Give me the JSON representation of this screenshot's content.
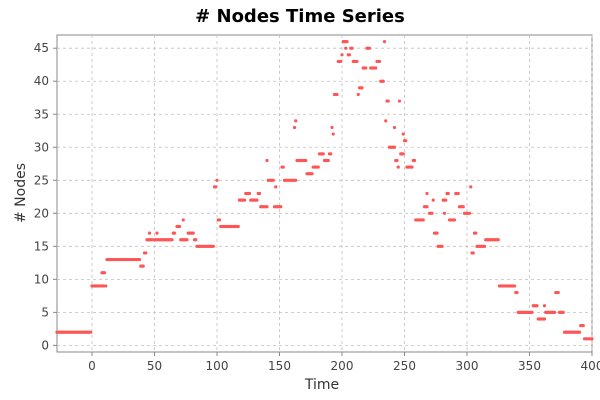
{
  "chart_data": {
    "type": "scatter",
    "title": "# Nodes Time Series",
    "xlabel": "Time",
    "ylabel": "# Nodes",
    "xlim": [
      -28,
      400
    ],
    "ylim": [
      -1,
      47
    ],
    "xticks": [
      0,
      50,
      100,
      150,
      200,
      250,
      300,
      350,
      400
    ],
    "yticks": [
      0,
      5,
      10,
      15,
      20,
      25,
      30,
      35,
      40,
      45
    ],
    "grid": true,
    "legend": "none",
    "point_color": "#ff5555",
    "series": [
      {
        "segments": [
          [
            -28,
            -1,
            2
          ],
          [
            0,
            9,
            9
          ],
          [
            8,
            10,
            11
          ],
          [
            11,
            11,
            9
          ],
          [
            12,
            38,
            13
          ],
          [
            39,
            41,
            12
          ],
          [
            42,
            43,
            14
          ],
          [
            44,
            48,
            16
          ],
          [
            46,
            46,
            17
          ],
          [
            50,
            64,
            16
          ],
          [
            52,
            52,
            17
          ],
          [
            65,
            66,
            17
          ],
          [
            68,
            70,
            18
          ],
          [
            71,
            76,
            16
          ],
          [
            73,
            73,
            19
          ],
          [
            77,
            81,
            17
          ],
          [
            82,
            83,
            16
          ],
          [
            84,
            97,
            15
          ],
          [
            98,
            99,
            24
          ],
          [
            100,
            100,
            25
          ],
          [
            101,
            102,
            19
          ],
          [
            103,
            117,
            18
          ],
          [
            118,
            122,
            22
          ],
          [
            123,
            126,
            23
          ],
          [
            127,
            132,
            22
          ],
          [
            133,
            134,
            23
          ],
          [
            135,
            140,
            21
          ],
          [
            140,
            140,
            28
          ],
          [
            141,
            145,
            25
          ],
          [
            146,
            151,
            21
          ],
          [
            147,
            147,
            24
          ],
          [
            152,
            153,
            27
          ],
          [
            154,
            163,
            25
          ],
          [
            162,
            162,
            33
          ],
          [
            163,
            163,
            34
          ],
          [
            164,
            171,
            28
          ],
          [
            172,
            176,
            26
          ],
          [
            177,
            181,
            27
          ],
          [
            182,
            185,
            29
          ],
          [
            186,
            189,
            28
          ],
          [
            190,
            191,
            29
          ],
          [
            192,
            192,
            33
          ],
          [
            193,
            193,
            32
          ],
          [
            194,
            196,
            38
          ],
          [
            197,
            199,
            43
          ],
          [
            200,
            200,
            44
          ],
          [
            201,
            204,
            46
          ],
          [
            203,
            203,
            45
          ],
          [
            205,
            206,
            44
          ],
          [
            207,
            208,
            45
          ],
          [
            209,
            212,
            43
          ],
          [
            213,
            213,
            38
          ],
          [
            214,
            216,
            39
          ],
          [
            217,
            219,
            42
          ],
          [
            220,
            222,
            45
          ],
          [
            223,
            227,
            42
          ],
          [
            228,
            230,
            43
          ],
          [
            231,
            233,
            40
          ],
          [
            234,
            234,
            46
          ],
          [
            235,
            235,
            34
          ],
          [
            236,
            237,
            37
          ],
          [
            238,
            242,
            30
          ],
          [
            242,
            242,
            33
          ],
          [
            243,
            244,
            28
          ],
          [
            245,
            245,
            27
          ],
          [
            246,
            246,
            37
          ],
          [
            247,
            249,
            29
          ],
          [
            249,
            249,
            32
          ],
          [
            250,
            251,
            31
          ],
          [
            252,
            256,
            27
          ],
          [
            257,
            258,
            28
          ],
          [
            259,
            265,
            19
          ],
          [
            266,
            268,
            21
          ],
          [
            268,
            268,
            23
          ],
          [
            270,
            272,
            20
          ],
          [
            273,
            273,
            22
          ],
          [
            274,
            276,
            17
          ],
          [
            277,
            280,
            15
          ],
          [
            281,
            283,
            22
          ],
          [
            282,
            282,
            20
          ],
          [
            284,
            285,
            23
          ],
          [
            286,
            290,
            19
          ],
          [
            291,
            293,
            23
          ],
          [
            294,
            297,
            21
          ],
          [
            298,
            302,
            20
          ],
          [
            303,
            303,
            24
          ],
          [
            304,
            305,
            14
          ],
          [
            306,
            307,
            17
          ],
          [
            308,
            314,
            15
          ],
          [
            315,
            325,
            16
          ],
          [
            326,
            338,
            9
          ],
          [
            339,
            340,
            8
          ],
          [
            341,
            352,
            5
          ],
          [
            353,
            356,
            6
          ],
          [
            357,
            362,
            4
          ],
          [
            362,
            362,
            6
          ],
          [
            363,
            370,
            5
          ],
          [
            371,
            373,
            8
          ],
          [
            374,
            377,
            5
          ],
          [
            378,
            390,
            2
          ],
          [
            391,
            393,
            3
          ],
          [
            394,
            400,
            1
          ]
        ]
      }
    ]
  }
}
